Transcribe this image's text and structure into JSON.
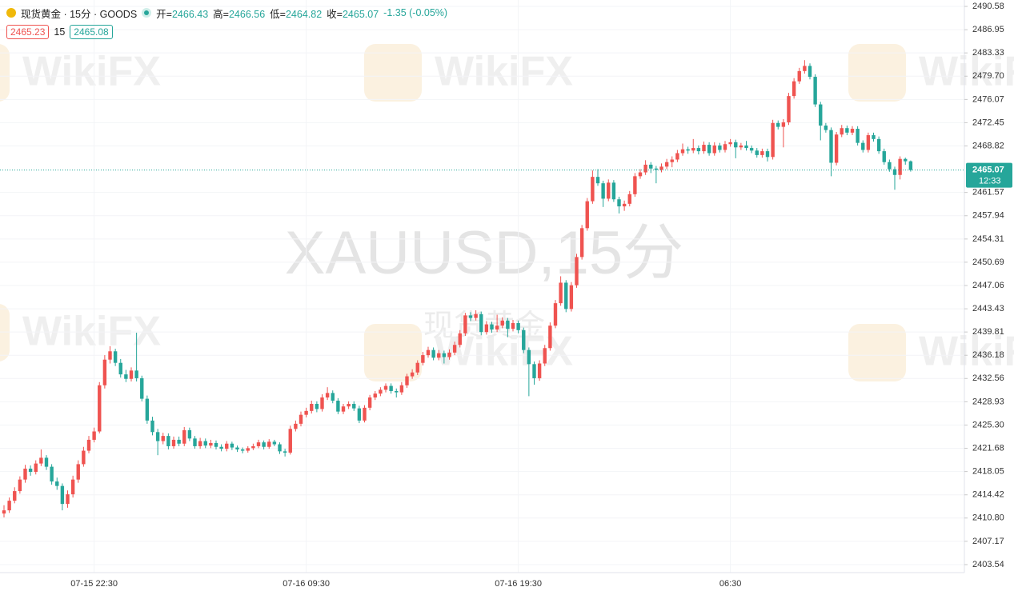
{
  "header": {
    "symbol": "现货黄金 · 15分 · GOODS",
    "open_label": "开=",
    "high_label": "高=",
    "low_label": "低=",
    "close_label": "收=",
    "change_label": "-1.35 (-0.05%)",
    "bid": 2465.23,
    "size": 15,
    "ask": 2465.08
  },
  "chart_data": {
    "type": "candlestick",
    "watermark": "XAUUSD,15分",
    "watermark_sub": "现货黄金",
    "brand": "WikiFX",
    "countdown": "12:33",
    "up_color": "#ef5350",
    "down_color": "#26a69a",
    "grid": true,
    "ylim": [
      2402.29,
      2491.58
    ],
    "yticks": [
      2403.54,
      2407.17,
      {
        "value": 2410.8,
        "label": "2410.80"
      },
      2414.42,
      2418.05,
      2421.68,
      {
        "value": 2425.3,
        "label": "2425.30"
      },
      2428.93,
      2432.56,
      2436.18,
      2439.81,
      2443.43,
      2447.06,
      2450.69,
      2454.31,
      2457.94,
      2461.57,
      2468.82,
      2472.45,
      2476.07,
      {
        "value": 2479.7,
        "label": "2479.70"
      },
      2483.33,
      2486.95,
      2490.58
    ],
    "categories": [
      null,
      null,
      null,
      null,
      null,
      null,
      null,
      null,
      null,
      null,
      null,
      null,
      null,
      null,
      null,
      null,
      null,
      "07-15 22:30",
      null,
      null,
      null,
      null,
      null,
      null,
      null,
      null,
      null,
      null,
      null,
      null,
      null,
      null,
      null,
      null,
      null,
      null,
      null,
      null,
      null,
      null,
      null,
      null,
      null,
      null,
      null,
      null,
      null,
      null,
      null,
      null,
      null,
      null,
      null,
      null,
      null,
      null,
      null,
      "07-16 09:30",
      null,
      null,
      null,
      null,
      null,
      null,
      null,
      null,
      null,
      null,
      null,
      null,
      null,
      null,
      null,
      null,
      null,
      null,
      null,
      null,
      null,
      null,
      null,
      null,
      null,
      null,
      null,
      null,
      null,
      null,
      null,
      null,
      null,
      null,
      null,
      null,
      null,
      null,
      null,
      "07-16 19:30",
      null,
      null,
      null,
      null,
      null,
      null,
      null,
      null,
      null,
      null,
      null,
      null,
      null,
      null,
      null,
      null,
      null,
      null,
      null,
      null,
      null,
      null,
      null,
      null,
      null,
      null,
      null,
      null,
      null,
      null,
      null,
      null,
      null,
      null,
      null,
      null,
      null,
      null,
      null,
      "06:30",
      null,
      null,
      null,
      null,
      null,
      null,
      null,
      null,
      null,
      null,
      null,
      null,
      null,
      null,
      null,
      null,
      null,
      null,
      null,
      null,
      null,
      null,
      null,
      null,
      null,
      null,
      null,
      null,
      null,
      null,
      null,
      null,
      null,
      null
    ],
    "candles": [
      [
        2411.5,
        2412.8,
        2410.9,
        2412.0
      ],
      [
        2412.0,
        2414.0,
        2411.6,
        2413.5
      ],
      [
        2413.5,
        2415.6,
        2413.1,
        2415.0
      ],
      [
        2415.0,
        2417.3,
        2414.6,
        2416.8
      ],
      [
        2416.8,
        2419.1,
        2416.3,
        2418.5
      ],
      [
        2418.5,
        2419.0,
        2417.4,
        2418.0
      ],
      [
        2418.0,
        2419.8,
        2417.6,
        2419.3
      ],
      [
        2419.3,
        2421.5,
        2418.9,
        2420.2
      ],
      [
        2420.2,
        2420.6,
        2418.3,
        2418.8
      ],
      [
        2418.8,
        2419.2,
        2416.0,
        2416.5
      ],
      [
        2416.5,
        2417.1,
        2415.2,
        2415.8
      ],
      [
        2415.8,
        2416.2,
        2412.0,
        2413.0
      ],
      [
        2413.0,
        2415.1,
        2412.4,
        2414.5
      ],
      [
        2414.5,
        2417.4,
        2414.0,
        2416.8
      ],
      [
        2416.8,
        2419.8,
        2416.3,
        2419.2
      ],
      [
        2419.2,
        2421.9,
        2418.8,
        2421.3
      ],
      [
        2421.3,
        2423.6,
        2420.9,
        2423.0
      ],
      [
        2423.0,
        2424.9,
        2422.6,
        2424.3
      ],
      [
        2424.3,
        2432.0,
        2424.0,
        2431.5
      ],
      [
        2431.5,
        2436.2,
        2431.0,
        2435.5
      ],
      [
        2435.5,
        2437.6,
        2434.9,
        2436.8
      ],
      [
        2436.8,
        2437.2,
        2434.5,
        2435.0
      ],
      [
        2435.0,
        2435.6,
        2432.7,
        2433.2
      ],
      [
        2433.2,
        2433.9,
        2432.0,
        2432.5
      ],
      [
        2432.5,
        2434.3,
        2432.1,
        2433.8
      ],
      [
        2433.8,
        2439.7,
        2432.1,
        2432.6
      ],
      [
        2432.6,
        2433.0,
        2429.0,
        2429.4
      ],
      [
        2429.4,
        2429.9,
        2425.5,
        2426.0
      ],
      [
        2426.0,
        2426.6,
        2423.7,
        2424.2
      ],
      [
        2424.2,
        2424.7,
        2420.6,
        2422.8
      ],
      [
        2422.8,
        2424.1,
        2422.3,
        2423.6
      ],
      [
        2423.6,
        2424.0,
        2421.5,
        2422.0
      ],
      [
        2422.0,
        2423.5,
        2421.6,
        2423.0
      ],
      [
        2423.0,
        2423.5,
        2422.0,
        2422.4
      ],
      [
        2422.4,
        2425.0,
        2422.0,
        2424.5
      ],
      [
        2424.5,
        2424.9,
        2422.8,
        2423.2
      ],
      [
        2423.2,
        2423.6,
        2421.6,
        2422.0
      ],
      [
        2422.0,
        2423.3,
        2421.6,
        2422.8
      ],
      [
        2422.8,
        2423.2,
        2421.7,
        2422.1
      ],
      [
        2422.1,
        2423.0,
        2421.7,
        2422.5
      ],
      [
        2422.5,
        2422.9,
        2421.5,
        2421.9
      ],
      [
        2421.9,
        2422.3,
        2421.2,
        2421.6
      ],
      [
        2421.6,
        2422.8,
        2421.2,
        2422.4
      ],
      [
        2422.4,
        2422.7,
        2421.4,
        2421.8
      ],
      [
        2421.8,
        2422.1,
        2421.1,
        2421.5
      ],
      [
        2421.5,
        2421.8,
        2420.9,
        2421.3
      ],
      [
        2421.3,
        2422.0,
        2421.0,
        2421.7
      ],
      [
        2421.7,
        2422.4,
        2421.4,
        2422.0
      ],
      [
        2422.0,
        2423.0,
        2421.7,
        2422.6
      ],
      [
        2422.6,
        2422.9,
        2421.5,
        2421.9
      ],
      [
        2421.9,
        2423.1,
        2421.6,
        2422.7
      ],
      [
        2422.7,
        2423.0,
        2422.0,
        2422.3
      ],
      [
        2422.3,
        2422.6,
        2420.8,
        2421.2
      ],
      [
        2421.2,
        2421.6,
        2420.4,
        2421.0
      ],
      [
        2421.0,
        2425.2,
        2420.7,
        2424.7
      ],
      [
        2424.7,
        2426.0,
        2424.3,
        2425.5
      ],
      [
        2425.5,
        2427.4,
        2425.1,
        2426.9
      ],
      [
        2426.9,
        2428.0,
        2426.5,
        2427.5
      ],
      [
        2427.5,
        2429.1,
        2427.1,
        2428.6
      ],
      [
        2428.6,
        2429.0,
        2427.3,
        2427.8
      ],
      [
        2427.8,
        2430.1,
        2427.4,
        2429.6
      ],
      [
        2429.6,
        2431.2,
        2429.2,
        2430.3
      ],
      [
        2430.3,
        2430.7,
        2428.7,
        2429.1
      ],
      [
        2429.1,
        2429.5,
        2427.0,
        2427.4
      ],
      [
        2427.4,
        2428.6,
        2427.0,
        2428.2
      ],
      [
        2428.2,
        2429.0,
        2427.8,
        2428.6
      ],
      [
        2428.6,
        2429.0,
        2427.5,
        2427.9
      ],
      [
        2427.9,
        2428.3,
        2425.6,
        2426.0
      ],
      [
        2426.0,
        2428.4,
        2425.7,
        2428.0
      ],
      [
        2428.0,
        2430.0,
        2427.6,
        2429.6
      ],
      [
        2429.6,
        2430.6,
        2429.2,
        2430.2
      ],
      [
        2430.2,
        2431.2,
        2429.8,
        2430.8
      ],
      [
        2430.8,
        2431.8,
        2430.4,
        2431.4
      ],
      [
        2431.4,
        2431.8,
        2430.2,
        2430.6
      ],
      [
        2430.6,
        2431.0,
        2429.6,
        2430.4
      ],
      [
        2430.4,
        2432.0,
        2430.0,
        2431.5
      ],
      [
        2431.5,
        2433.3,
        2431.1,
        2432.9
      ],
      [
        2432.9,
        2434.0,
        2432.5,
        2433.5
      ],
      [
        2433.5,
        2435.4,
        2433.1,
        2435.0
      ],
      [
        2435.0,
        2436.7,
        2434.6,
        2436.2
      ],
      [
        2436.2,
        2437.5,
        2435.8,
        2437.0
      ],
      [
        2437.0,
        2437.4,
        2435.4,
        2435.8
      ],
      [
        2435.8,
        2437.0,
        2435.4,
        2436.5
      ],
      [
        2436.5,
        2436.9,
        2434.9,
        2435.9
      ],
      [
        2435.9,
        2437.1,
        2435.5,
        2436.6
      ],
      [
        2436.6,
        2438.3,
        2436.2,
        2437.8
      ],
      [
        2437.8,
        2440.1,
        2437.4,
        2439.6
      ],
      [
        2439.6,
        2442.8,
        2439.2,
        2442.4
      ],
      [
        2442.4,
        2442.9,
        2441.5,
        2442.0
      ],
      [
        2442.0,
        2443.2,
        2441.6,
        2442.6
      ],
      [
        2442.6,
        2443.0,
        2439.3,
        2439.8
      ],
      [
        2439.8,
        2441.5,
        2439.4,
        2441.0
      ],
      [
        2441.0,
        2441.4,
        2439.7,
        2440.2
      ],
      [
        2440.2,
        2442.5,
        2439.8,
        2440.8
      ],
      [
        2440.8,
        2442.1,
        2440.4,
        2441.6
      ],
      [
        2441.6,
        2442.0,
        2439.0,
        2440.3
      ],
      [
        2440.3,
        2441.7,
        2439.9,
        2441.2
      ],
      [
        2441.2,
        2441.6,
        2439.6,
        2440.1
      ],
      [
        2440.1,
        2440.5,
        2436.5,
        2437.0
      ],
      [
        2437.0,
        2437.4,
        2429.8,
        2434.8
      ],
      [
        2434.8,
        2435.2,
        2431.6,
        2432.6
      ],
      [
        2432.6,
        2435.4,
        2432.2,
        2434.9
      ],
      [
        2434.9,
        2437.8,
        2434.5,
        2437.3
      ],
      [
        2437.3,
        2441.3,
        2436.9,
        2440.8
      ],
      [
        2440.8,
        2444.8,
        2440.4,
        2444.3
      ],
      [
        2444.3,
        2448.5,
        2443.9,
        2447.5
      ],
      [
        2447.5,
        2447.9,
        2442.9,
        2443.4
      ],
      [
        2443.4,
        2447.6,
        2443.0,
        2447.1
      ],
      [
        2447.1,
        2452.0,
        2446.7,
        2451.5
      ],
      [
        2451.5,
        2456.5,
        2451.1,
        2456.0
      ],
      [
        2456.0,
        2460.7,
        2455.6,
        2460.2
      ],
      [
        2460.2,
        2465.0,
        2459.8,
        2464.0
      ],
      [
        2464.0,
        2465.2,
        2462.6,
        2463.0
      ],
      [
        2463.0,
        2463.4,
        2459.3,
        2460.6
      ],
      [
        2460.6,
        2463.6,
        2460.2,
        2463.1
      ],
      [
        2463.1,
        2463.5,
        2460.1,
        2460.5
      ],
      [
        2460.5,
        2460.9,
        2458.3,
        2459.4
      ],
      [
        2459.4,
        2460.3,
        2458.7,
        2459.8
      ],
      [
        2459.8,
        2461.8,
        2459.4,
        2461.3
      ],
      [
        2461.3,
        2464.6,
        2460.9,
        2464.1
      ],
      [
        2464.1,
        2465.2,
        2463.7,
        2464.7
      ],
      [
        2464.7,
        2466.6,
        2464.3,
        2465.9
      ],
      [
        2465.9,
        2466.3,
        2464.6,
        2465.3
      ],
      [
        2465.3,
        2465.7,
        2463.0,
        2465.1
      ],
      [
        2465.1,
        2466.1,
        2464.7,
        2465.6
      ],
      [
        2465.6,
        2466.8,
        2465.2,
        2466.3
      ],
      [
        2466.3,
        2467.2,
        2465.5,
        2466.7
      ],
      [
        2466.7,
        2468.2,
        2466.3,
        2467.7
      ],
      [
        2467.7,
        2469.2,
        2467.3,
        2468.3
      ],
      [
        2468.3,
        2468.7,
        2467.6,
        2468.1
      ],
      [
        2468.1,
        2469.9,
        2467.7,
        2468.5
      ],
      [
        2468.5,
        2468.9,
        2467.5,
        2468.0
      ],
      [
        2468.0,
        2469.5,
        2467.6,
        2469.0
      ],
      [
        2469.0,
        2469.4,
        2467.3,
        2467.7
      ],
      [
        2467.7,
        2469.4,
        2467.3,
        2468.9
      ],
      [
        2468.9,
        2469.3,
        2467.8,
        2468.2
      ],
      [
        2468.2,
        2469.6,
        2467.8,
        2469.1
      ],
      [
        2469.1,
        2469.9,
        2468.7,
        2469.4
      ],
      [
        2469.4,
        2469.8,
        2466.9,
        2468.6
      ],
      [
        2468.6,
        2469.3,
        2468.2,
        2468.9
      ],
      [
        2468.9,
        2469.6,
        2468.1,
        2468.5
      ],
      [
        2468.5,
        2468.9,
        2467.7,
        2468.1
      ],
      [
        2468.1,
        2468.5,
        2467.0,
        2467.4
      ],
      [
        2467.4,
        2468.4,
        2467.0,
        2468.0
      ],
      [
        2468.0,
        2468.4,
        2466.4,
        2467.1
      ],
      [
        2467.1,
        2472.9,
        2466.7,
        2472.4
      ],
      [
        2472.4,
        2472.8,
        2471.4,
        2471.8
      ],
      [
        2471.8,
        2473.0,
        2468.6,
        2472.5
      ],
      [
        2472.5,
        2477.1,
        2472.1,
        2476.6
      ],
      [
        2476.6,
        2479.4,
        2476.2,
        2478.9
      ],
      [
        2478.9,
        2481.0,
        2478.5,
        2480.5
      ],
      [
        2480.5,
        2482.2,
        2480.1,
        2481.3
      ],
      [
        2481.3,
        2481.7,
        2479.2,
        2479.6
      ],
      [
        2479.6,
        2480.0,
        2474.9,
        2475.3
      ],
      [
        2475.3,
        2475.7,
        2469.7,
        2472.0
      ],
      [
        2472.0,
        2472.4,
        2470.9,
        2471.3
      ],
      [
        2471.3,
        2471.7,
        2464.1,
        2466.2
      ],
      [
        2466.2,
        2471.0,
        2465.8,
        2470.6
      ],
      [
        2470.6,
        2472.1,
        2470.2,
        2471.6
      ],
      [
        2471.6,
        2472.0,
        2470.5,
        2470.9
      ],
      [
        2470.9,
        2471.9,
        2470.5,
        2471.5
      ],
      [
        2471.5,
        2471.9,
        2468.9,
        2469.3
      ],
      [
        2469.3,
        2469.7,
        2467.8,
        2468.2
      ],
      [
        2468.2,
        2470.9,
        2467.8,
        2470.5
      ],
      [
        2470.5,
        2470.9,
        2469.5,
        2469.9
      ],
      [
        2469.9,
        2470.3,
        2467.6,
        2468.0
      ],
      [
        2468.0,
        2468.4,
        2465.9,
        2466.3
      ],
      [
        2466.3,
        2466.7,
        2464.8,
        2465.2
      ],
      [
        2465.2,
        2465.6,
        2462.0,
        2464.3
      ],
      [
        2464.3,
        2467.2,
        2463.6,
        2466.8
      ],
      [
        2466.8,
        2467.0,
        2465.9,
        2466.43
      ],
      [
        2466.43,
        2466.56,
        2464.82,
        2465.07
      ]
    ]
  }
}
